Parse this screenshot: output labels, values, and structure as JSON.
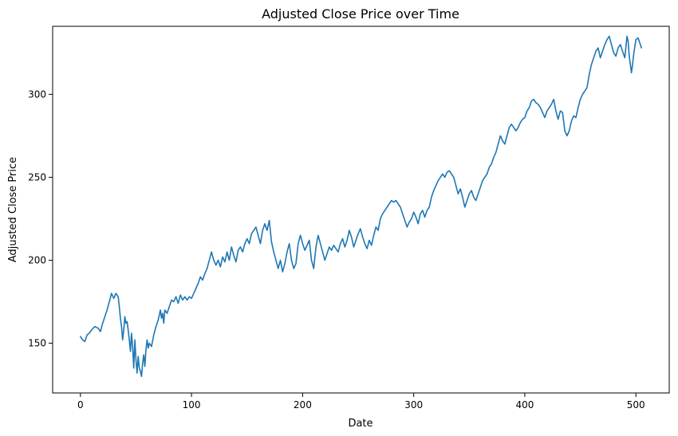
{
  "chart_data": {
    "type": "line",
    "title": "Adjusted Close Price over Time",
    "xlabel": "Date",
    "ylabel": "Adjusted Close Price",
    "xlim": [
      -25,
      530
    ],
    "ylim": [
      120,
      341
    ],
    "xticks": [
      0,
      100,
      200,
      300,
      400,
      500
    ],
    "yticks": [
      150,
      200,
      250,
      300
    ],
    "grid": false,
    "series_color": "#1f77b4",
    "series": [
      {
        "points": [
          [
            0,
            154
          ],
          [
            2,
            152
          ],
          [
            4,
            151
          ],
          [
            6,
            155
          ],
          [
            8,
            156
          ],
          [
            10,
            158
          ],
          [
            13,
            160
          ],
          [
            16,
            159
          ],
          [
            18,
            157
          ],
          [
            20,
            162
          ],
          [
            22,
            166
          ],
          [
            24,
            170
          ],
          [
            26,
            175
          ],
          [
            28,
            180
          ],
          [
            30,
            177
          ],
          [
            32,
            180
          ],
          [
            34,
            178
          ],
          [
            35,
            172
          ],
          [
            36,
            165
          ],
          [
            37,
            160
          ],
          [
            38,
            152
          ],
          [
            39,
            158
          ],
          [
            40,
            166
          ],
          [
            41,
            162
          ],
          [
            42,
            163
          ],
          [
            43,
            158
          ],
          [
            44,
            152
          ],
          [
            45,
            145
          ],
          [
            46,
            156
          ],
          [
            47,
            148
          ],
          [
            48,
            135
          ],
          [
            49,
            152
          ],
          [
            50,
            140
          ],
          [
            51,
            132
          ],
          [
            52,
            142
          ],
          [
            53,
            135
          ],
          [
            54,
            133
          ],
          [
            55,
            130
          ],
          [
            56,
            138
          ],
          [
            57,
            143
          ],
          [
            58,
            136
          ],
          [
            59,
            146
          ],
          [
            60,
            152
          ],
          [
            61,
            147
          ],
          [
            62,
            150
          ],
          [
            64,
            148
          ],
          [
            66,
            155
          ],
          [
            68,
            160
          ],
          [
            70,
            164
          ],
          [
            72,
            170
          ],
          [
            73,
            165
          ],
          [
            74,
            168
          ],
          [
            75,
            162
          ],
          [
            76,
            170
          ],
          [
            78,
            168
          ],
          [
            80,
            172
          ],
          [
            82,
            176
          ],
          [
            84,
            175
          ],
          [
            86,
            178
          ],
          [
            88,
            174
          ],
          [
            90,
            179
          ],
          [
            92,
            176
          ],
          [
            94,
            178
          ],
          [
            96,
            176
          ],
          [
            98,
            178
          ],
          [
            100,
            177
          ],
          [
            102,
            180
          ],
          [
            104,
            183
          ],
          [
            106,
            186
          ],
          [
            108,
            190
          ],
          [
            110,
            188
          ],
          [
            112,
            192
          ],
          [
            114,
            195
          ],
          [
            116,
            200
          ],
          [
            118,
            205
          ],
          [
            120,
            200
          ],
          [
            122,
            197
          ],
          [
            124,
            200
          ],
          [
            126,
            196
          ],
          [
            128,
            202
          ],
          [
            130,
            199
          ],
          [
            132,
            205
          ],
          [
            134,
            200
          ],
          [
            136,
            208
          ],
          [
            138,
            203
          ],
          [
            140,
            199
          ],
          [
            142,
            206
          ],
          [
            144,
            208
          ],
          [
            146,
            205
          ],
          [
            148,
            210
          ],
          [
            150,
            213
          ],
          [
            152,
            210
          ],
          [
            154,
            216
          ],
          [
            156,
            218
          ],
          [
            158,
            220
          ],
          [
            160,
            215
          ],
          [
            162,
            210
          ],
          [
            164,
            218
          ],
          [
            166,
            222
          ],
          [
            168,
            218
          ],
          [
            170,
            224
          ],
          [
            172,
            211
          ],
          [
            174,
            205
          ],
          [
            176,
            200
          ],
          [
            178,
            195
          ],
          [
            180,
            200
          ],
          [
            182,
            193
          ],
          [
            184,
            198
          ],
          [
            186,
            205
          ],
          [
            188,
            210
          ],
          [
            190,
            200
          ],
          [
            192,
            195
          ],
          [
            194,
            198
          ],
          [
            196,
            210
          ],
          [
            198,
            215
          ],
          [
            200,
            210
          ],
          [
            202,
            206
          ],
          [
            204,
            209
          ],
          [
            206,
            212
          ],
          [
            208,
            200
          ],
          [
            210,
            195
          ],
          [
            212,
            208
          ],
          [
            214,
            215
          ],
          [
            216,
            210
          ],
          [
            218,
            205
          ],
          [
            220,
            200
          ],
          [
            222,
            204
          ],
          [
            224,
            208
          ],
          [
            226,
            206
          ],
          [
            228,
            209
          ],
          [
            230,
            207
          ],
          [
            232,
            205
          ],
          [
            234,
            210
          ],
          [
            236,
            213
          ],
          [
            238,
            208
          ],
          [
            240,
            212
          ],
          [
            242,
            218
          ],
          [
            244,
            214
          ],
          [
            246,
            208
          ],
          [
            248,
            212
          ],
          [
            250,
            216
          ],
          [
            252,
            219
          ],
          [
            254,
            214
          ],
          [
            256,
            210
          ],
          [
            258,
            207
          ],
          [
            260,
            212
          ],
          [
            262,
            209
          ],
          [
            264,
            215
          ],
          [
            266,
            220
          ],
          [
            268,
            218
          ],
          [
            270,
            225
          ],
          [
            272,
            228
          ],
          [
            274,
            230
          ],
          [
            276,
            232
          ],
          [
            278,
            234
          ],
          [
            280,
            236
          ],
          [
            282,
            235
          ],
          [
            284,
            236
          ],
          [
            286,
            234
          ],
          [
            288,
            232
          ],
          [
            290,
            228
          ],
          [
            292,
            224
          ],
          [
            294,
            220
          ],
          [
            296,
            223
          ],
          [
            298,
            225
          ],
          [
            300,
            229
          ],
          [
            302,
            226
          ],
          [
            304,
            222
          ],
          [
            306,
            228
          ],
          [
            308,
            230
          ],
          [
            310,
            226
          ],
          [
            312,
            230
          ],
          [
            314,
            232
          ],
          [
            316,
            238
          ],
          [
            318,
            242
          ],
          [
            320,
            245
          ],
          [
            322,
            248
          ],
          [
            324,
            250
          ],
          [
            326,
            252
          ],
          [
            328,
            250
          ],
          [
            330,
            253
          ],
          [
            332,
            254
          ],
          [
            334,
            252
          ],
          [
            336,
            250
          ],
          [
            338,
            245
          ],
          [
            340,
            240
          ],
          [
            342,
            243
          ],
          [
            344,
            238
          ],
          [
            346,
            232
          ],
          [
            348,
            236
          ],
          [
            350,
            240
          ],
          [
            352,
            242
          ],
          [
            354,
            238
          ],
          [
            356,
            236
          ],
          [
            358,
            240
          ],
          [
            360,
            244
          ],
          [
            362,
            248
          ],
          [
            364,
            250
          ],
          [
            366,
            252
          ],
          [
            368,
            256
          ],
          [
            370,
            258
          ],
          [
            372,
            262
          ],
          [
            374,
            265
          ],
          [
            376,
            270
          ],
          [
            378,
            275
          ],
          [
            380,
            272
          ],
          [
            382,
            270
          ],
          [
            384,
            275
          ],
          [
            386,
            280
          ],
          [
            388,
            282
          ],
          [
            390,
            280
          ],
          [
            392,
            278
          ],
          [
            394,
            280
          ],
          [
            396,
            283
          ],
          [
            398,
            285
          ],
          [
            400,
            286
          ],
          [
            402,
            290
          ],
          [
            404,
            292
          ],
          [
            406,
            296
          ],
          [
            408,
            297
          ],
          [
            410,
            295
          ],
          [
            412,
            294
          ],
          [
            414,
            292
          ],
          [
            416,
            289
          ],
          [
            418,
            286
          ],
          [
            420,
            290
          ],
          [
            422,
            292
          ],
          [
            424,
            294
          ],
          [
            426,
            297
          ],
          [
            428,
            290
          ],
          [
            430,
            285
          ],
          [
            432,
            290
          ],
          [
            434,
            289
          ],
          [
            436,
            278
          ],
          [
            438,
            275
          ],
          [
            440,
            278
          ],
          [
            442,
            284
          ],
          [
            444,
            287
          ],
          [
            446,
            286
          ],
          [
            448,
            292
          ],
          [
            450,
            297
          ],
          [
            452,
            300
          ],
          [
            454,
            302
          ],
          [
            456,
            304
          ],
          [
            458,
            312
          ],
          [
            460,
            318
          ],
          [
            462,
            322
          ],
          [
            464,
            326
          ],
          [
            466,
            328
          ],
          [
            468,
            322
          ],
          [
            470,
            326
          ],
          [
            472,
            330
          ],
          [
            474,
            333
          ],
          [
            476,
            335
          ],
          [
            478,
            330
          ],
          [
            480,
            325
          ],
          [
            482,
            323
          ],
          [
            484,
            328
          ],
          [
            486,
            330
          ],
          [
            488,
            326
          ],
          [
            490,
            322
          ],
          [
            492,
            335
          ],
          [
            493,
            332
          ],
          [
            494,
            323
          ],
          [
            495,
            318
          ],
          [
            496,
            313
          ],
          [
            497,
            318
          ],
          [
            498,
            324
          ],
          [
            500,
            333
          ],
          [
            502,
            334
          ],
          [
            504,
            330
          ],
          [
            505,
            328
          ]
        ]
      }
    ]
  }
}
